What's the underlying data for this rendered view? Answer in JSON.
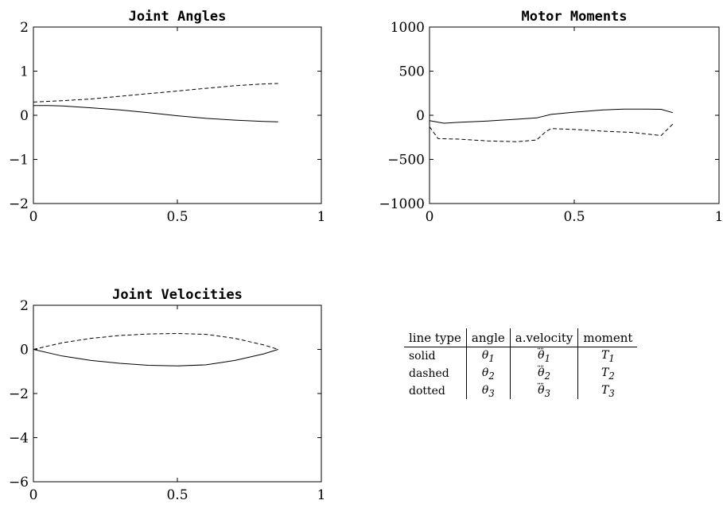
{
  "chart_data": [
    {
      "type": "line",
      "title": "Joint Angles",
      "xlim": [
        0,
        1
      ],
      "ylim": [
        -2,
        2
      ],
      "xticks": [
        "0",
        "0.5",
        "1"
      ],
      "yticks": [
        "2",
        "1",
        "0",
        "−1",
        "−2"
      ],
      "series": [
        {
          "style": "solid",
          "x": [
            0,
            0.05,
            0.1,
            0.2,
            0.3,
            0.4,
            0.5,
            0.6,
            0.7,
            0.8,
            0.85
          ],
          "y": [
            0.22,
            0.22,
            0.21,
            0.17,
            0.12,
            0.06,
            -0.01,
            -0.07,
            -0.11,
            -0.14,
            -0.15
          ]
        },
        {
          "style": "dashed",
          "x": [
            0,
            0.1,
            0.2,
            0.3,
            0.4,
            0.5,
            0.6,
            0.7,
            0.8,
            0.85
          ],
          "y": [
            0.3,
            0.33,
            0.37,
            0.43,
            0.49,
            0.55,
            0.61,
            0.67,
            0.71,
            0.72
          ]
        }
      ]
    },
    {
      "type": "line",
      "title": "Motor Moments",
      "xlim": [
        0,
        1
      ],
      "ylim": [
        -1000,
        1000
      ],
      "xticks": [
        "0",
        "0.5",
        "1"
      ],
      "yticks": [
        "1000",
        "500",
        "0",
        "−500",
        "−1000"
      ],
      "series": [
        {
          "style": "solid",
          "x": [
            0,
            0.05,
            0.1,
            0.2,
            0.3,
            0.37,
            0.42,
            0.5,
            0.6,
            0.67,
            0.75,
            0.8,
            0.84
          ],
          "y": [
            -60,
            -90,
            -80,
            -65,
            -45,
            -30,
            10,
            35,
            60,
            70,
            70,
            68,
            30
          ]
        },
        {
          "style": "dashed",
          "x": [
            0,
            0.03,
            0.1,
            0.2,
            0.3,
            0.37,
            0.4,
            0.42,
            0.5,
            0.6,
            0.7,
            0.8,
            0.84
          ],
          "y": [
            -130,
            -265,
            -270,
            -290,
            -300,
            -280,
            -190,
            -150,
            -160,
            -180,
            -195,
            -230,
            -100
          ]
        }
      ]
    },
    {
      "type": "line",
      "title": "Joint Velocities",
      "xlim": [
        0,
        1
      ],
      "ylim": [
        -6,
        2
      ],
      "xticks": [
        "0",
        "0.5",
        "1"
      ],
      "yticks": [
        "2",
        "0",
        "−2",
        "−4",
        "−6"
      ],
      "series": [
        {
          "style": "solid",
          "x": [
            0,
            0.1,
            0.2,
            0.3,
            0.4,
            0.5,
            0.6,
            0.7,
            0.8,
            0.85
          ],
          "y": [
            0,
            -0.3,
            -0.5,
            -0.63,
            -0.72,
            -0.75,
            -0.7,
            -0.5,
            -0.2,
            0
          ]
        },
        {
          "style": "dashed",
          "x": [
            0,
            0.1,
            0.2,
            0.3,
            0.4,
            0.5,
            0.6,
            0.7,
            0.8,
            0.85
          ],
          "y": [
            0,
            0.3,
            0.5,
            0.63,
            0.7,
            0.72,
            0.68,
            0.5,
            0.2,
            0
          ]
        }
      ]
    }
  ],
  "legend_table": {
    "headers": [
      "line type",
      "angle",
      "a.velocity",
      "moment"
    ],
    "rows": [
      {
        "type": "solid",
        "angle_sym": "θ",
        "angle_sub": "1",
        "vel_sym": "θ",
        "vel_sub": "1",
        "moment_sym": "T",
        "moment_sub": "1"
      },
      {
        "type": "dashed",
        "angle_sym": "θ",
        "angle_sub": "2",
        "vel_sym": "θ",
        "vel_sub": "2",
        "moment_sym": "T",
        "moment_sub": "2"
      },
      {
        "type": "dotted",
        "angle_sym": "θ",
        "angle_sub": "3",
        "vel_sym": "θ",
        "vel_sub": "3",
        "moment_sym": "T",
        "moment_sub": "3"
      }
    ]
  }
}
